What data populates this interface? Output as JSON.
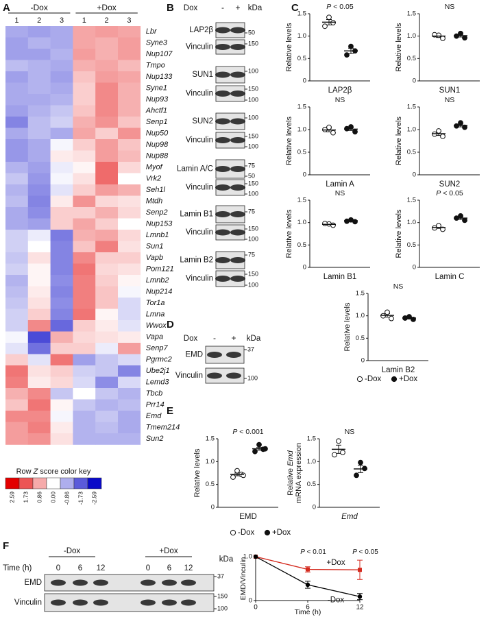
{
  "panels": {
    "A": {
      "label": "A",
      "groups": [
        "-Dox",
        "+Dox"
      ],
      "columns": [
        "1",
        "2",
        "3",
        "1",
        "2",
        "3"
      ],
      "genes": [
        "Lbr",
        "Syne3",
        "Nup107",
        "Tmpo",
        "Nup133",
        "Syne1",
        "Nup93",
        "Ahctf1",
        "Senp1",
        "Nup50",
        "Nup98",
        "Nup88",
        "Myof",
        "Vrk2",
        "Seh1l",
        "Mtdh",
        "Senp2",
        "Nup153",
        "Lmnb1",
        "Sun1",
        "Vapb",
        "Pom121",
        "Lmnb2",
        "Nup214",
        "Tor1a",
        "Lmna",
        "Wwox",
        "Vapa",
        "Senp7",
        "Pgrmc2",
        "Ube2j1",
        "Lemd3",
        "Tbcb",
        "Prr14",
        "Emd",
        "Tmem214",
        "Sun2"
      ],
      "values": [
        [
          -0.9,
          -1.0,
          -0.9,
          0.9,
          1.0,
          0.9
        ],
        [
          -1.0,
          -0.8,
          -0.9,
          0.9,
          0.8,
          1.0
        ],
        [
          -1.0,
          -1.0,
          -0.8,
          1.0,
          0.8,
          1.0
        ],
        [
          -0.7,
          -0.8,
          -0.9,
          0.8,
          0.9,
          0.7
        ],
        [
          -1.0,
          -0.8,
          -1.0,
          0.6,
          1.0,
          0.9
        ],
        [
          -0.9,
          -0.8,
          -0.9,
          0.5,
          1.2,
          0.8
        ],
        [
          -0.9,
          -0.9,
          -0.8,
          0.5,
          1.2,
          0.8
        ],
        [
          -1.0,
          -0.8,
          -0.6,
          0.6,
          1.2,
          0.8
        ],
        [
          -1.3,
          -0.7,
          -0.5,
          0.8,
          1.1,
          0.6
        ],
        [
          -0.9,
          -0.7,
          -0.9,
          0.9,
          0.5,
          1.1
        ],
        [
          -1.1,
          -0.9,
          -0.1,
          0.5,
          1.0,
          0.6
        ],
        [
          -1.1,
          -0.9,
          0.2,
          0.3,
          1.0,
          0.7
        ],
        [
          -0.8,
          -1.0,
          -0.2,
          0.1,
          1.5,
          0.4
        ],
        [
          -0.6,
          -1.1,
          -0.1,
          0.3,
          1.5,
          0.0
        ],
        [
          -0.8,
          -1.2,
          -0.3,
          0.5,
          1.0,
          0.8
        ],
        [
          -0.7,
          -1.3,
          0.2,
          1.1,
          0.4,
          0.3
        ],
        [
          -0.9,
          -1.2,
          0.5,
          0.5,
          0.8,
          0.4
        ],
        [
          -0.9,
          -1.0,
          0.5,
          0.9,
          0.5,
          0.0
        ],
        [
          -0.5,
          -0.2,
          -1.4,
          0.8,
          0.9,
          0.4
        ],
        [
          -0.5,
          0.0,
          -1.3,
          0.6,
          1.3,
          0.3
        ],
        [
          -0.6,
          0.3,
          -1.3,
          1.2,
          0.5,
          0.5
        ],
        [
          -0.5,
          0.1,
          -1.3,
          1.4,
          0.4,
          0.3
        ],
        [
          -0.8,
          0.1,
          -1.2,
          1.3,
          0.5,
          0.1
        ],
        [
          -0.7,
          0.2,
          -1.3,
          1.3,
          0.6,
          -0.1
        ],
        [
          -0.6,
          0.3,
          -1.2,
          1.3,
          0.6,
          -0.4
        ],
        [
          -0.5,
          0.5,
          -1.3,
          1.4,
          0.1,
          -0.4
        ],
        [
          -0.5,
          1.2,
          -1.6,
          0.5,
          0.2,
          -0.3
        ],
        [
          -0.1,
          -1.9,
          0.8,
          0.4,
          0.3,
          0.2
        ],
        [
          -0.3,
          -1.5,
          0.5,
          0.5,
          -0.2,
          1.0
        ],
        [
          0.5,
          -0.3,
          1.4,
          -1.0,
          -0.6,
          -0.4
        ],
        [
          1.4,
          0.3,
          0.5,
          -0.5,
          -0.6,
          -1.3
        ],
        [
          1.3,
          0.2,
          0.4,
          -0.4,
          -1.2,
          -0.4
        ],
        [
          0.8,
          1.2,
          -0.6,
          0.0,
          -0.6,
          -0.8
        ],
        [
          0.6,
          1.4,
          0.1,
          -0.6,
          -0.8,
          -0.7
        ],
        [
          1.2,
          1.2,
          -0.1,
          -0.8,
          -0.6,
          -0.9
        ],
        [
          1.0,
          1.3,
          0.2,
          -0.8,
          -0.7,
          -0.9
        ],
        [
          1.0,
          1.1,
          0.3,
          -0.8,
          -0.8,
          -0.8
        ]
      ],
      "key_title": [
        {
          "text": "Row "
        },
        {
          "text": "Z",
          "italic": true
        },
        {
          "text": " score color key"
        }
      ],
      "key_ticks": [
        2.59,
        1.73,
        0.86,
        {
          "value": 0,
          "label": "0.00"
        },
        -0.86,
        -1.73,
        -2.59
      ]
    },
    "B": {
      "label": "B",
      "dox": "Dox",
      "lanes": [
        "-",
        "+"
      ],
      "unit": "kDa",
      "blots": [
        {
          "name": "LAP2β",
          "markers": [
            50
          ]
        },
        {
          "name": "Vinculin",
          "markers": [
            150
          ]
        },
        {
          "name": "SUN1",
          "markers": [
            100
          ]
        },
        {
          "name": "Vinculin",
          "markers": [
            150,
            100
          ]
        },
        {
          "name": "SUN2",
          "markers": [
            100
          ]
        },
        {
          "name": "Vinculin",
          "markers": [
            150,
            100
          ]
        },
        {
          "name": "Lamin A/C",
          "markers": [
            75,
            50
          ]
        },
        {
          "name": "Vinculin",
          "markers": [
            150,
            100
          ]
        },
        {
          "name": "Lamin B1",
          "markers": [
            75
          ]
        },
        {
          "name": "Vinculin",
          "markers": [
            150,
            100
          ]
        },
        {
          "name": "Lamin B2",
          "markers": [
            75
          ]
        },
        {
          "name": "Vinculin",
          "markers": [
            150,
            100
          ]
        }
      ]
    },
    "C": {
      "label": "C",
      "plots": [
        {
          "ylabel": "Relative levels",
          "xlabel": "LAP2β",
          "annotation": [
            {
              "text": "P",
              "italic": true
            },
            {
              "text": " < 0.05"
            }
          ],
          "ylim": [
            0,
            1.5
          ],
          "yticks": [
            0,
            0.5,
            {
              "value": 1,
              "label": "1.0"
            },
            1.5
          ],
          "groups": [
            {
              "values": [
                1.42,
                1.3,
                1.22
              ],
              "mean": 1.31,
              "sem": 0.06
            },
            {
              "values": [
                0.77,
                0.67,
                0.58
              ],
              "mean": 0.67,
              "sem": 0.06
            }
          ]
        },
        {
          "ylabel": "Relative levels",
          "xlabel": "SUN1",
          "annotation": [
            {
              "text": "NS"
            }
          ],
          "ylim": [
            0,
            1.5
          ],
          "yticks": [
            0,
            0.5,
            {
              "value": 1,
              "label": "1.0"
            },
            1.5
          ],
          "groups": [
            {
              "values": [
                1.02,
                0.95,
                1.03
              ],
              "mean": 1.0,
              "sem": 0.03
            },
            {
              "values": [
                1.06,
                0.96,
                1.0
              ],
              "mean": 1.01,
              "sem": 0.03
            }
          ]
        },
        {
          "ylabel": "Relative levels",
          "xlabel": "Lamin A",
          "annotation": [
            {
              "text": "NS"
            }
          ],
          "ylim": [
            0,
            1.5
          ],
          "yticks": [
            0,
            0.5,
            {
              "value": 1,
              "label": "1.0"
            },
            1.5
          ],
          "groups": [
            {
              "values": [
                1.05,
                0.93,
                1.0
              ],
              "mean": 0.99,
              "sem": 0.04
            },
            {
              "values": [
                1.06,
                0.95,
                1.02
              ],
              "mean": 1.01,
              "sem": 0.03
            }
          ]
        },
        {
          "ylabel": "Relative levels",
          "xlabel": "SUN2",
          "annotation": [
            {
              "text": "NS"
            }
          ],
          "ylim": [
            0,
            1.5
          ],
          "yticks": [
            0,
            0.5,
            {
              "value": 1,
              "label": "1.0"
            },
            1.5
          ],
          "groups": [
            {
              "values": [
                0.97,
                0.85,
                0.9
              ],
              "mean": 0.91,
              "sem": 0.04
            },
            {
              "values": [
                1.15,
                1.05,
                1.08
              ],
              "mean": 1.09,
              "sem": 0.03
            }
          ]
        },
        {
          "ylabel": "Relative levels",
          "xlabel": "Lamin B1",
          "annotation": [
            {
              "text": "NS"
            }
          ],
          "ylim": [
            0,
            1.5
          ],
          "yticks": [
            0,
            0.5,
            {
              "value": 1,
              "label": "1.0"
            },
            1.5
          ],
          "groups": [
            {
              "values": [
                0.97,
                0.94,
                0.98
              ],
              "mean": 0.96,
              "sem": 0.01
            },
            {
              "values": [
                1.06,
                1.02,
                1.03
              ],
              "mean": 1.04,
              "sem": 0.01
            }
          ]
        },
        {
          "ylabel": "Relative levels",
          "xlabel": "Lamin C",
          "annotation": [
            {
              "text": "P",
              "italic": true
            },
            {
              "text": " < 0.05"
            }
          ],
          "ylim": [
            0,
            1.5
          ],
          "yticks": [
            0,
            0.5,
            {
              "value": 1,
              "label": "1.0"
            },
            1.5
          ],
          "groups": [
            {
              "values": [
                0.93,
                0.85,
                0.88
              ],
              "mean": 0.89,
              "sem": 0.02
            },
            {
              "values": [
                1.15,
                1.05,
                1.1
              ],
              "mean": 1.1,
              "sem": 0.03
            }
          ]
        },
        {
          "ylabel": "Relative levels",
          "xlabel": "Lamin B2",
          "annotation": [
            {
              "text": "NS"
            }
          ],
          "ylim": [
            0,
            1.5
          ],
          "yticks": [
            0,
            0.5,
            {
              "value": 1,
              "label": "1.0"
            },
            1.5
          ],
          "groups": [
            {
              "values": [
                1.08,
                0.94,
                1.0
              ],
              "mean": 1.01,
              "sem": 0.04
            },
            {
              "values": [
                0.98,
                0.92,
                0.95
              ],
              "mean": 0.95,
              "sem": 0.02
            }
          ]
        }
      ],
      "legend": [
        {
          "name": "-Dox",
          "filled": false
        },
        {
          "name": "+Dox",
          "filled": true
        }
      ]
    },
    "D": {
      "label": "D",
      "dox": "Dox",
      "lanes": [
        "-",
        "+"
      ],
      "unit": "kDa",
      "blots": [
        {
          "name": "EMD",
          "markers": [
            37
          ]
        },
        {
          "name": "Vinculin",
          "markers": [
            100
          ]
        }
      ]
    },
    "E": {
      "label": "E",
      "plots": [
        {
          "ylabel": "Relative levels",
          "xlabel": "EMD",
          "annotation": [
            {
              "text": "P",
              "italic": true
            },
            {
              "text": " < 0.001"
            }
          ],
          "ylim": [
            0,
            1.5
          ],
          "yticks": [
            0,
            0.5,
            {
              "value": 1,
              "label": "1.0"
            },
            1.5
          ],
          "groups": [
            {
              "values": [
                0.8,
                0.72,
                0.66,
                0.7
              ],
              "mean": 0.72,
              "sem": 0.03
            },
            {
              "values": [
                1.37,
                1.27,
                1.22,
                1.28
              ],
              "mean": 1.28,
              "sem": 0.03
            }
          ]
        },
        {
          "ylabel_lines": [
            [
              {
                "text": "Relative "
              },
              {
                "text": "Emd",
                "italic": true
              }
            ],
            [
              {
                "text": "mRNA expression"
              }
            ]
          ],
          "xlabel": [
            {
              "text": "Emd",
              "italic": true
            }
          ],
          "annotation": [
            {
              "text": "NS"
            }
          ],
          "ylim": [
            0,
            1.5
          ],
          "yticks": [
            0,
            0.5,
            {
              "value": 1,
              "label": "1.0"
            },
            1.5
          ],
          "groups": [
            {
              "values": [
                1.45,
                1.2,
                1.15
              ],
              "mean": 1.27,
              "sem": 0.09
            },
            {
              "values": [
                0.98,
                0.85,
                0.7
              ],
              "mean": 0.84,
              "sem": 0.08
            }
          ]
        }
      ],
      "legend": [
        {
          "name": "-Dox",
          "filled": false
        },
        {
          "name": "+Dox",
          "filled": true
        }
      ]
    },
    "F": {
      "label": "F",
      "blot": {
        "groups": [
          "-Dox",
          "+Dox"
        ],
        "time_label": "Time (h)",
        "times": [
          0,
          6,
          12,
          0,
          6,
          12
        ],
        "unit": "kDa",
        "blots": [
          {
            "name": "EMD",
            "markers": [
              37
            ]
          },
          {
            "name": "Vinculin",
            "markers": [
              150,
              100
            ]
          }
        ]
      },
      "chart": {
        "type": "line",
        "xlabel": "Time (h)",
        "ylabel": "EMD/Vinculin",
        "x": [
          0,
          6,
          12
        ],
        "xlim": [
          0,
          12
        ],
        "xticks": [
          0,
          6,
          12
        ],
        "ylim": [
          0,
          1
        ],
        "yticks": [
          0,
          {
            "value": 1,
            "label": "1.0"
          }
        ],
        "series": [
          {
            "name": "+Dox",
            "color": "#d42a1e",
            "marker": "square",
            "values": [
              1,
              0.71,
              0.7
            ],
            "errors": [
              null,
              0.06,
              0.22
            ]
          },
          {
            "name": "-Dox",
            "color": "#000000",
            "marker": "circle",
            "values": [
              1,
              0.36,
              0.09
            ],
            "errors": [
              null,
              0.08,
              0.07
            ]
          }
        ],
        "annotations": [
          {
            "x": 6,
            "parts": [
              {
                "text": "P",
                "italic": true
              },
              {
                "text": " < 0.01"
              }
            ]
          },
          {
            "x": 12,
            "parts": [
              {
                "text": "P",
                "italic": true
              },
              {
                "text": " < 0.05"
              }
            ]
          }
        ]
      }
    }
  }
}
